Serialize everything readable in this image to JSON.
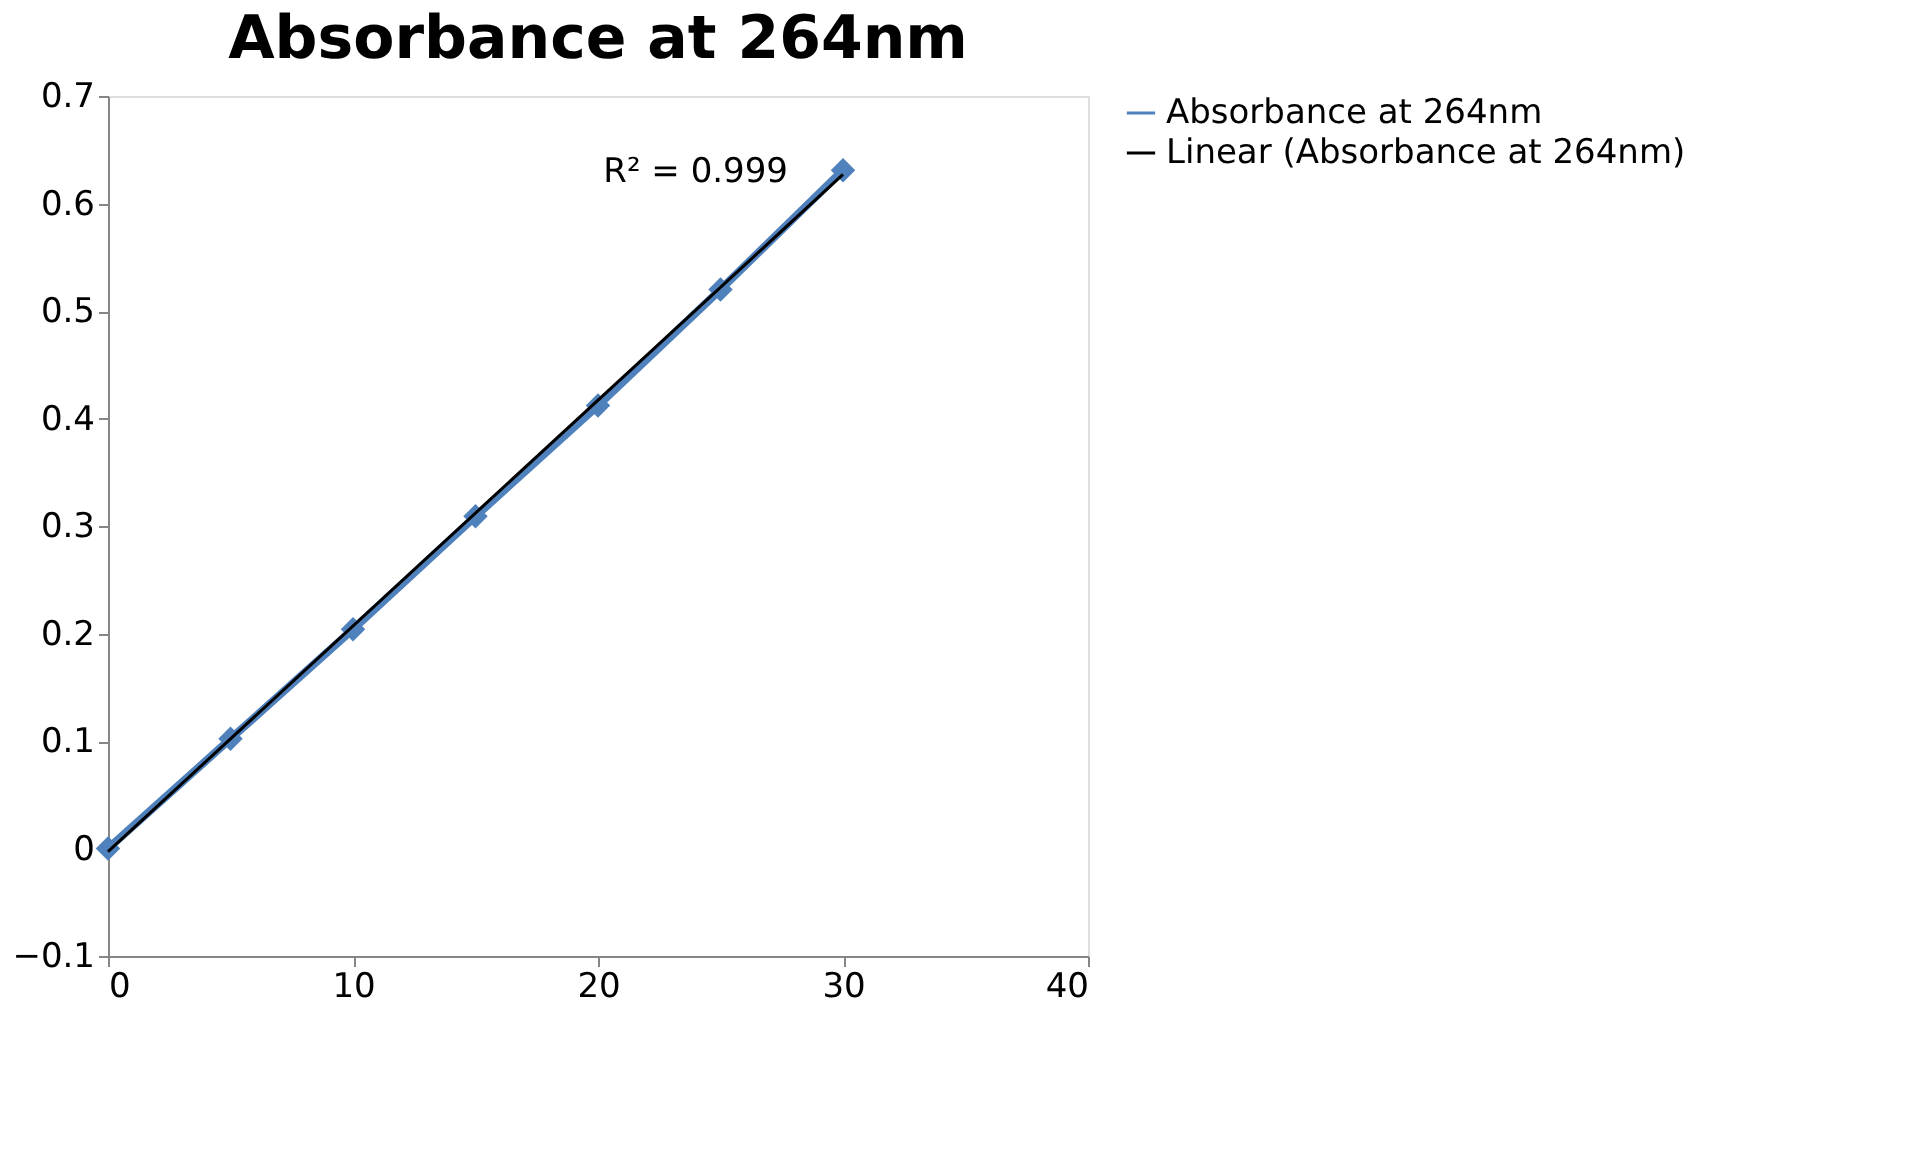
{
  "chart_data": {
    "type": "line",
    "title": "Absorbance at 264nm",
    "x": [
      0,
      5,
      10,
      15,
      20,
      25,
      30
    ],
    "series": [
      {
        "name": "Absorbance at 264nm",
        "color": "#4f81bd",
        "marker": "diamond",
        "line_style": "solid",
        "values": [
          0,
          0.102,
          0.204,
          0.309,
          0.412,
          0.52,
          0.631
        ]
      },
      {
        "name": "Linear (Absorbance at 264nm)",
        "color": "#000000",
        "marker": "none",
        "line_style": "solid",
        "x": [
          0,
          30
        ],
        "values": [
          -0.003,
          0.627
        ]
      }
    ],
    "xlim": [
      0,
      40
    ],
    "xticks": [
      0,
      10,
      20,
      30,
      40
    ],
    "ylim": [
      -0.1,
      0.7
    ],
    "yticks": [
      -0.1,
      0,
      0.1,
      0.2,
      0.3,
      0.4,
      0.5,
      0.6,
      0.7
    ],
    "annotations": [
      "R² = 0.999"
    ],
    "legend": "right",
    "grid": false
  }
}
